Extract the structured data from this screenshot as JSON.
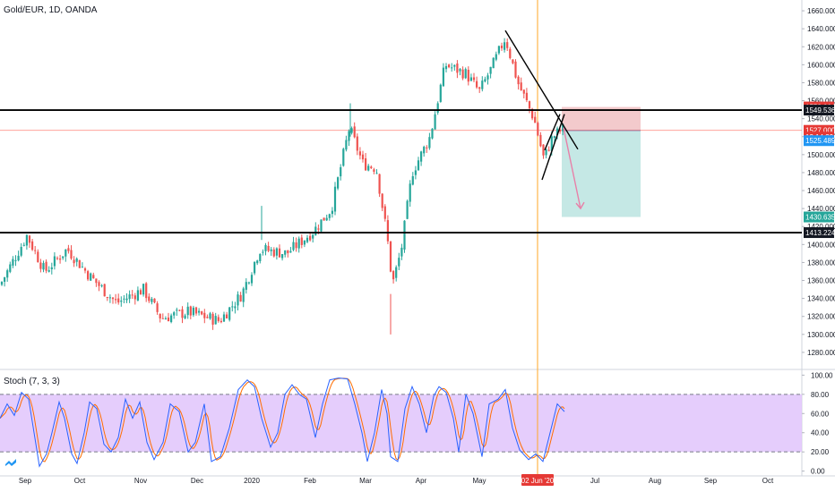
{
  "header": {
    "symbol_title": "Gold/EUR, 1D, OANDA"
  },
  "indicator": {
    "title": "Stoch (7, 3, 3)"
  },
  "colors": {
    "up": "#26a69a",
    "down": "#ef5350",
    "k_line": "#2962ff",
    "d_line": "#ff6d00",
    "band": "#e1c4fb",
    "target_zone": "#b2e0dc",
    "stop_zone": "#f2c4c6",
    "price_tag_red": "#e53935",
    "price_tag_blue": "#2196f3",
    "price_tag_black": "#131722",
    "current_line": "#ff7b72",
    "time_marker": "#ffa726"
  },
  "logo_icon": "tradingview-logo-icon",
  "chart_data": [
    {
      "type": "candlestick",
      "title": "Gold/EUR, 1D, OANDA",
      "y_ticks": [
        1280,
        1300,
        1320,
        1340,
        1360,
        1380,
        1400,
        1420,
        1440,
        1460,
        1480,
        1500,
        1520,
        1540,
        1560,
        1580,
        1600,
        1620,
        1640,
        1660
      ],
      "y_tick_labels": [
        "1280.000",
        "1300.000",
        "1320.000",
        "1340.000",
        "1360.000",
        "1380.000",
        "1400.000",
        "1420.000",
        "1440.000",
        "1460.000",
        "1480.000",
        "1500.000",
        "1520.000",
        "1540.000",
        "1560.000",
        "1580.000",
        "1600.000",
        "1620.000",
        "1640.000",
        "1660.000"
      ],
      "ylim": [
        1262,
        1672
      ],
      "x_ticks": [
        "Sep",
        "Oct",
        "Nov",
        "Dec",
        "2020",
        "Feb",
        "Mar",
        "Apr",
        "May",
        "02 Jun '20",
        "Jul",
        "Aug",
        "Sep",
        "Oct"
      ],
      "highlighted_x_tick": "02 Jun '20",
      "path_keypoints": [
        [
          0,
          1355
        ],
        [
          30,
          1410
        ],
        [
          50,
          1370
        ],
        [
          75,
          1395
        ],
        [
          100,
          1365
        ],
        [
          130,
          1335
        ],
        [
          160,
          1350
        ],
        [
          180,
          1318
        ],
        [
          210,
          1325
        ],
        [
          245,
          1315
        ],
        [
          270,
          1345
        ],
        [
          290,
          1395
        ],
        [
          320,
          1390
        ],
        [
          350,
          1415
        ],
        [
          370,
          1440
        ],
        [
          390,
          1530
        ],
        [
          405,
          1490
        ],
        [
          420,
          1485
        ],
        [
          432,
          1410
        ],
        [
          438,
          1355
        ],
        [
          448,
          1395
        ],
        [
          460,
          1480
        ],
        [
          480,
          1520
        ],
        [
          497,
          1600
        ],
        [
          520,
          1590
        ],
        [
          535,
          1570
        ],
        [
          548,
          1595
        ],
        [
          564,
          1630
        ],
        [
          578,
          1580
        ],
        [
          596,
          1540
        ],
        [
          607,
          1495
        ],
        [
          617,
          1520
        ],
        [
          630,
          1530
        ]
      ],
      "horizontal_levels": [
        1549.536,
        1413.224
      ],
      "current_price": 1527.0,
      "trend_lines": [
        {
          "from": [
            564,
            1638
          ],
          "to": [
            645,
            1506
          ]
        },
        {
          "from": [
            605,
            1472
          ],
          "to": [
            630,
            1545
          ]
        },
        {
          "from": [
            608,
            1505
          ],
          "to": [
            625,
            1545
          ]
        }
      ],
      "short_position": {
        "entry": 1527.0,
        "stop": 1553.004,
        "target": 1430.635,
        "x_from": 627,
        "x_to": 715
      },
      "projection_arrow": {
        "from": [
          629,
          1530
        ],
        "to": [
          648,
          1440
        ]
      },
      "price_tags": [
        {
          "value": 1553.004,
          "label": "1553.004",
          "color": "#e53935"
        },
        {
          "value": 1549.536,
          "label": "1549.536",
          "color": "#131722"
        },
        {
          "value": 1527.0,
          "label": "1527.000",
          "color": "#e53935"
        },
        {
          "value": 1519.5,
          "label": "13:14:39",
          "color": "#e53935"
        },
        {
          "value": 1525.489,
          "label": "1525.489",
          "color": "#2196f3",
          "offset_down": true
        },
        {
          "value": 1430.635,
          "label": "1430.635",
          "color": "#26a69a"
        },
        {
          "value": 1413.224,
          "label": "1413.224",
          "color": "#131722"
        }
      ]
    },
    {
      "type": "line",
      "title": "Stoch (7, 3, 3)",
      "y_ticks": [
        0,
        20,
        40,
        60,
        80,
        100
      ],
      "y_tick_labels": [
        "0.00",
        "20.00",
        "40.00",
        "60.00",
        "80.00",
        "100.00"
      ],
      "ylim": [
        -5,
        105
      ],
      "band": [
        20,
        80
      ],
      "k_keypoints": [
        [
          0,
          55
        ],
        [
          8,
          70
        ],
        [
          16,
          58
        ],
        [
          24,
          82
        ],
        [
          32,
          75
        ],
        [
          38,
          40
        ],
        [
          44,
          5
        ],
        [
          52,
          18
        ],
        [
          58,
          40
        ],
        [
          66,
          72
        ],
        [
          72,
          55
        ],
        [
          80,
          18
        ],
        [
          86,
          8
        ],
        [
          94,
          40
        ],
        [
          100,
          72
        ],
        [
          108,
          65
        ],
        [
          116,
          28
        ],
        [
          124,
          20
        ],
        [
          132,
          35
        ],
        [
          140,
          75
        ],
        [
          148,
          55
        ],
        [
          156,
          72
        ],
        [
          164,
          30
        ],
        [
          172,
          12
        ],
        [
          182,
          30
        ],
        [
          190,
          70
        ],
        [
          200,
          62
        ],
        [
          210,
          20
        ],
        [
          218,
          30
        ],
        [
          228,
          70
        ],
        [
          236,
          10
        ],
        [
          246,
          15
        ],
        [
          256,
          45
        ],
        [
          266,
          85
        ],
        [
          276,
          95
        ],
        [
          284,
          88
        ],
        [
          292,
          55
        ],
        [
          302,
          25
        ],
        [
          310,
          40
        ],
        [
          318,
          80
        ],
        [
          326,
          90
        ],
        [
          334,
          80
        ],
        [
          342,
          75
        ],
        [
          352,
          35
        ],
        [
          360,
          70
        ],
        [
          368,
          95
        ],
        [
          378,
          97
        ],
        [
          388,
          96
        ],
        [
          396,
          70
        ],
        [
          404,
          40
        ],
        [
          410,
          10
        ],
        [
          418,
          40
        ],
        [
          426,
          85
        ],
        [
          432,
          60
        ],
        [
          436,
          15
        ],
        [
          444,
          10
        ],
        [
          452,
          65
        ],
        [
          460,
          88
        ],
        [
          468,
          70
        ],
        [
          476,
          40
        ],
        [
          484,
          78
        ],
        [
          490,
          88
        ],
        [
          498,
          82
        ],
        [
          506,
          55
        ],
        [
          512,
          20
        ],
        [
          520,
          80
        ],
        [
          528,
          60
        ],
        [
          538,
          15
        ],
        [
          546,
          70
        ],
        [
          556,
          75
        ],
        [
          564,
          85
        ],
        [
          572,
          45
        ],
        [
          580,
          22
        ],
        [
          590,
          12
        ],
        [
          598,
          18
        ],
        [
          606,
          10
        ],
        [
          614,
          40
        ],
        [
          622,
          70
        ],
        [
          630,
          62
        ]
      ]
    }
  ]
}
